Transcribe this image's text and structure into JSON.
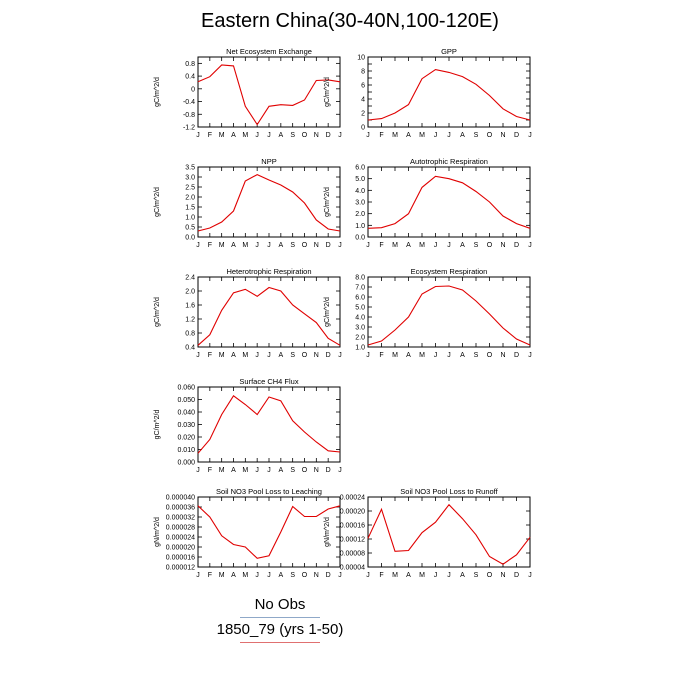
{
  "page": {
    "title": "Eastern China(30-40N,100-120E)"
  },
  "legend": {
    "items": [
      {
        "label": "No Obs",
        "color": "#8fa8c8"
      },
      {
        "label": "1850_79 (yrs 1-50)",
        "color": "#e07070"
      }
    ]
  },
  "series_color": "#e00000",
  "chart_data": [
    {
      "type": "line",
      "title": "Net Ecosystem Exchange",
      "ylabel": "gC/m^2/d",
      "categories": [
        "J",
        "F",
        "M",
        "A",
        "M",
        "J",
        "J",
        "A",
        "S",
        "O",
        "N",
        "D",
        "J"
      ],
      "ylim": [
        -1.2,
        1.0
      ],
      "yticks": [
        -1.2,
        -0.8,
        -0.4,
        0.0,
        0.4,
        0.8
      ],
      "yticklabels": [
        "-1.2",
        "-0.8",
        "-0.4",
        "0",
        "0.4",
        "0.8"
      ],
      "values": [
        0.22,
        0.38,
        0.75,
        0.72,
        -0.55,
        -1.12,
        -0.55,
        -0.5,
        -0.52,
        -0.35,
        0.26,
        0.28,
        0.22
      ]
    },
    {
      "type": "line",
      "title": "GPP",
      "ylabel": "gC/m^2/d",
      "categories": [
        "J",
        "F",
        "M",
        "A",
        "M",
        "J",
        "J",
        "A",
        "S",
        "O",
        "N",
        "D",
        "J"
      ],
      "ylim": [
        0,
        10
      ],
      "yticks": [
        0,
        1,
        2,
        3,
        4,
        5,
        6,
        7,
        8,
        9,
        10
      ],
      "yticklabels": [
        "0",
        "",
        "2",
        "",
        "4",
        "",
        "6",
        "",
        "8",
        "",
        "10"
      ],
      "values": [
        1.0,
        1.2,
        2.0,
        3.2,
        6.9,
        8.2,
        7.8,
        7.2,
        6.1,
        4.5,
        2.6,
        1.5,
        1.0
      ]
    },
    {
      "type": "line",
      "title": "NPP",
      "ylabel": "gC/m^2/d",
      "categories": [
        "J",
        "F",
        "M",
        "A",
        "M",
        "J",
        "J",
        "A",
        "S",
        "O",
        "N",
        "D",
        "J"
      ],
      "ylim": [
        0,
        3.5
      ],
      "yticks": [
        0,
        0.5,
        1.0,
        1.5,
        2.0,
        2.5,
        3.0,
        3.5
      ],
      "yticklabels": [
        "0.0",
        "0.5",
        "1.0",
        "1.5",
        "2.0",
        "2.5",
        "3.0",
        "3.5"
      ],
      "values": [
        0.3,
        0.45,
        0.75,
        1.3,
        2.8,
        3.12,
        2.85,
        2.6,
        2.25,
        1.7,
        0.85,
        0.4,
        0.3
      ]
    },
    {
      "type": "line",
      "title": "Autotrophic Respiration",
      "ylabel": "gC/m^2/d",
      "categories": [
        "J",
        "F",
        "M",
        "A",
        "M",
        "J",
        "J",
        "A",
        "S",
        "O",
        "N",
        "D",
        "J"
      ],
      "ylim": [
        0,
        6
      ],
      "yticks": [
        0,
        1,
        2,
        3,
        4,
        5,
        6
      ],
      "yticklabels": [
        "0.0",
        "1.0",
        "2.0",
        "3.0",
        "4.0",
        "5.0",
        "6.0"
      ],
      "values": [
        0.75,
        0.8,
        1.15,
        2.0,
        4.25,
        5.2,
        5.0,
        4.65,
        3.9,
        3.0,
        1.8,
        1.15,
        0.75
      ]
    },
    {
      "type": "line",
      "title": "Heterotrophic Respiration",
      "ylabel": "gC/m^2/d",
      "categories": [
        "J",
        "F",
        "M",
        "A",
        "M",
        "J",
        "J",
        "A",
        "S",
        "O",
        "N",
        "D",
        "J"
      ],
      "ylim": [
        0.4,
        2.4
      ],
      "yticks": [
        0.4,
        0.8,
        1.2,
        1.6,
        2.0,
        2.4
      ],
      "yticklabels": [
        "0.4",
        "0.8",
        "1.2",
        "1.6",
        "2.0",
        "2.4"
      ],
      "values": [
        0.45,
        0.75,
        1.45,
        1.95,
        2.05,
        1.85,
        2.1,
        2.0,
        1.6,
        1.35,
        1.1,
        0.65,
        0.45
      ]
    },
    {
      "type": "line",
      "title": "Ecosystem Respiration",
      "ylabel": "gC/m^2/d",
      "categories": [
        "J",
        "F",
        "M",
        "A",
        "M",
        "J",
        "J",
        "A",
        "S",
        "O",
        "N",
        "D",
        "J"
      ],
      "ylim": [
        1.0,
        8.0
      ],
      "yticks": [
        1,
        2,
        3,
        4,
        5,
        6,
        7,
        8
      ],
      "yticklabels": [
        "1.0",
        "2.0",
        "3.0",
        "4.0",
        "5.0",
        "6.0",
        "7.0",
        "8.0"
      ],
      "values": [
        1.2,
        1.6,
        2.7,
        4.0,
        6.3,
        7.05,
        7.1,
        6.7,
        5.6,
        4.3,
        2.9,
        1.8,
        1.2
      ]
    },
    {
      "type": "line",
      "title": "Surface CH4 Flux",
      "ylabel": "gC/m^2/d",
      "categories": [
        "J",
        "F",
        "M",
        "A",
        "M",
        "J",
        "J",
        "A",
        "S",
        "O",
        "N",
        "D",
        "J"
      ],
      "ylim": [
        0,
        0.06
      ],
      "yticks": [
        0,
        0.01,
        0.02,
        0.03,
        0.04,
        0.05,
        0.06
      ],
      "yticklabels": [
        "0.000",
        "0.010",
        "0.020",
        "0.030",
        "0.040",
        "0.050",
        "0.060"
      ],
      "values": [
        0.007,
        0.018,
        0.038,
        0.053,
        0.046,
        0.038,
        0.052,
        0.049,
        0.033,
        0.024,
        0.016,
        0.009,
        0.008
      ]
    },
    {
      "type": "line",
      "title": "Soil NO3 Pool Loss to Leaching",
      "ylabel": "gN/m^2/d",
      "categories": [
        "J",
        "F",
        "M",
        "A",
        "M",
        "J",
        "J",
        "A",
        "S",
        "O",
        "N",
        "D",
        "J"
      ],
      "ylim": [
        1.2e-05,
        4e-05
      ],
      "yticks": [
        1.2e-05,
        1.6e-05,
        2e-05,
        2.4e-05,
        2.8e-05,
        3.2e-05,
        3.6e-05,
        4e-05
      ],
      "yticklabels": [
        "0.000012",
        "0.000016",
        "0.000020",
        "0.000024",
        "0.000028",
        "0.000032",
        "0.000036",
        "0.000040"
      ],
      "values": [
        3.65e-05,
        3.2e-05,
        2.45e-05,
        2.1e-05,
        2e-05,
        1.55e-05,
        1.65e-05,
        2.6e-05,
        3.62e-05,
        3.22e-05,
        3.22e-05,
        3.52e-05,
        3.65e-05
      ]
    },
    {
      "type": "line",
      "title": "Soil NO3 Pool Loss to Runoff",
      "ylabel": "gN/m^2/d",
      "categories": [
        "J",
        "F",
        "M",
        "A",
        "M",
        "J",
        "J",
        "A",
        "S",
        "O",
        "N",
        "D",
        "J"
      ],
      "ylim": [
        4e-05,
        0.00024
      ],
      "yticks": [
        4e-05,
        8e-05,
        0.00012,
        0.00016,
        0.0002,
        0.00024
      ],
      "yticklabels": [
        "0.00004",
        "0.00008",
        "0.00012",
        "0.00016",
        "0.00020",
        "0.00024"
      ],
      "values": [
        0.000122,
        0.000205,
        8.5e-05,
        8.7e-05,
        0.000138,
        0.000168,
        0.000218,
        0.000178,
        0.000132,
        7e-05,
        4.8e-05,
        7.5e-05,
        0.000125
      ]
    }
  ]
}
